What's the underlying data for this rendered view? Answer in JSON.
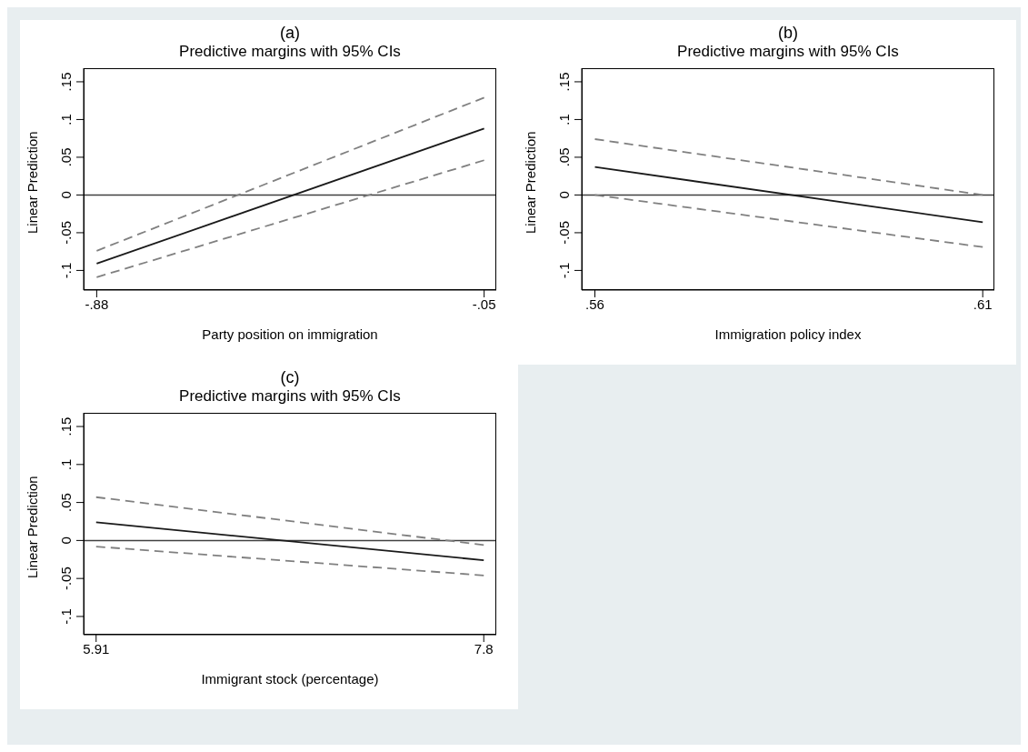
{
  "chart_data": [
    {
      "type": "line",
      "title": "(a)",
      "subtitle": "Predictive margins with 95% CIs",
      "xlabel": "Party position on immigration",
      "ylabel": "Linear Prediction",
      "xlim": [
        -0.908,
        -0.024
      ],
      "xticks": [
        {
          "value": -0.88,
          "label": "-.88"
        },
        {
          "value": -0.05,
          "label": "-.05"
        }
      ],
      "ylim": [
        -0.126,
        0.168
      ],
      "yticks": [
        {
          "value": -0.1,
          "label": "-.1"
        },
        {
          "value": -0.05,
          "label": "-.05"
        },
        {
          "value": 0,
          "label": "0"
        },
        {
          "value": 0.05,
          "label": ".05"
        },
        {
          "value": 0.1,
          "label": ".1"
        },
        {
          "value": 0.15,
          "label": ".15"
        }
      ],
      "grid": false,
      "marker": "none",
      "ref_lines": [
        {
          "axis": "y",
          "value": 0,
          "color": "#404040",
          "line_style": "solid"
        }
      ],
      "x": [
        -0.88,
        -0.05
      ],
      "series": [
        {
          "color": "#1a1a1a",
          "line_style": "solid",
          "values": [
            -0.091,
            0.088
          ]
        },
        {
          "color": "#808080",
          "line_style": "dashed",
          "values": [
            -0.074,
            0.129
          ]
        },
        {
          "color": "#808080",
          "line_style": "dashed",
          "values": [
            -0.109,
            0.046
          ]
        }
      ]
    },
    {
      "type": "line",
      "title": "(b)",
      "subtitle": "Predictive margins with 95% CIs",
      "xlabel": "Immigration policy index",
      "ylabel": "Linear Prediction",
      "xlim": [
        0.5583,
        0.6115
      ],
      "xticks": [
        {
          "value": 0.56,
          "label": ".56"
        },
        {
          "value": 0.61,
          "label": ".61"
        }
      ],
      "ylim": [
        -0.126,
        0.168
      ],
      "yticks": [
        {
          "value": -0.1,
          "label": "-.1"
        },
        {
          "value": -0.05,
          "label": "-.05"
        },
        {
          "value": 0,
          "label": "0"
        },
        {
          "value": 0.05,
          "label": ".05"
        },
        {
          "value": 0.1,
          "label": ".1"
        },
        {
          "value": 0.15,
          "label": ".15"
        }
      ],
      "grid": false,
      "marker": "none",
      "ref_lines": [
        {
          "axis": "y",
          "value": 0,
          "color": "#404040",
          "line_style": "solid"
        }
      ],
      "x": [
        0.56,
        0.61
      ],
      "series": [
        {
          "color": "#1a1a1a",
          "line_style": "solid",
          "values": [
            0.037,
            -0.036
          ]
        },
        {
          "color": "#808080",
          "line_style": "dashed",
          "values": [
            0.074,
            0
          ]
        },
        {
          "color": "#808080",
          "line_style": "dashed",
          "values": [
            0,
            -0.069
          ]
        }
      ]
    },
    {
      "type": "line",
      "title": "(c)",
      "subtitle": "Predictive margins with 95% CIs",
      "xlabel": "Immigrant stock (percentage)",
      "ylabel": "Linear Prediction",
      "xlim": [
        5.849,
        7.861
      ],
      "xticks": [
        5.91,
        7.8
      ],
      "ylim": [
        -0.124,
        0.168
      ],
      "yticks": [
        {
          "value": -0.1,
          "label": "-.1"
        },
        {
          "value": -0.05,
          "label": "-.05"
        },
        {
          "value": 0,
          "label": "0"
        },
        {
          "value": 0.05,
          "label": ".05"
        },
        {
          "value": 0.1,
          "label": ".1"
        },
        {
          "value": 0.15,
          "label": ".15"
        }
      ],
      "grid": false,
      "marker": "none",
      "ref_lines": [
        {
          "axis": "y",
          "value": 0,
          "color": "#404040",
          "line_style": "solid"
        }
      ],
      "x": [
        5.91,
        7.8
      ],
      "series": [
        {
          "color": "#1a1a1a",
          "line_style": "solid",
          "values": [
            0.024,
            -0.026
          ]
        },
        {
          "color": "#808080",
          "line_style": "dashed",
          "values": [
            0.057,
            -0.006
          ]
        },
        {
          "color": "#808080",
          "line_style": "dashed",
          "values": [
            -0.008,
            -0.046
          ]
        }
      ]
    }
  ]
}
